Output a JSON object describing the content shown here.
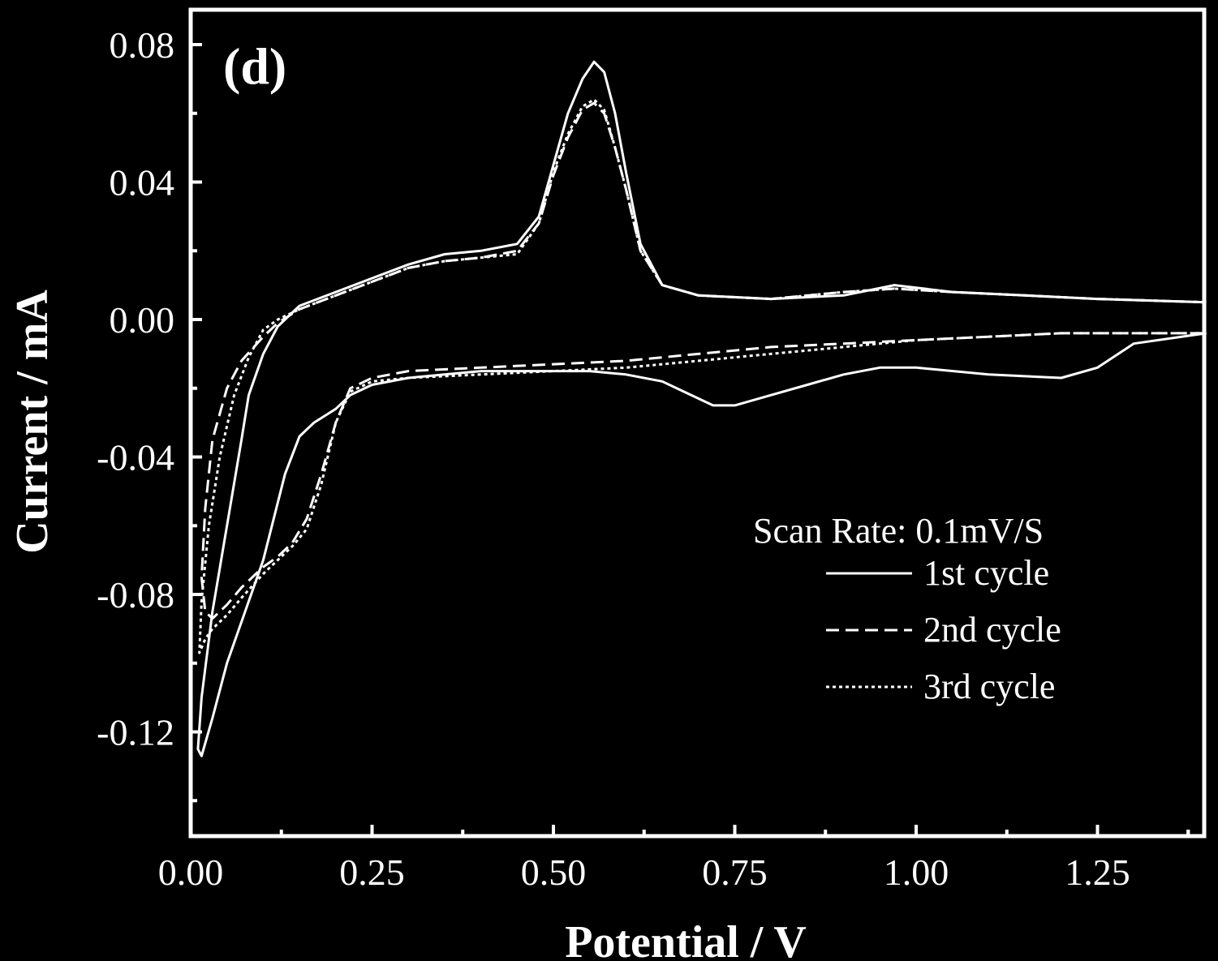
{
  "chart_data": {
    "type": "line",
    "panel_label": "(d)",
    "xlabel": "Potential / V",
    "ylabel": "Current / mA",
    "xlim": [
      0.0,
      1.4
    ],
    "ylim": [
      -0.15,
      0.09
    ],
    "x_ticks": [
      0.0,
      0.25,
      0.5,
      0.75,
      1.0,
      1.25
    ],
    "x_tick_labels": [
      "0.00",
      "0.25",
      "0.50",
      "0.75",
      "1.00",
      "1.25"
    ],
    "y_ticks": [
      0.08,
      0.04,
      0.0,
      -0.04,
      -0.08,
      -0.12
    ],
    "y_tick_labels": [
      "0.08",
      "0.04",
      "0.00",
      "-0.04",
      "-0.08",
      "-0.12"
    ],
    "grid": false,
    "legend": {
      "title": "Scan Rate: 0.1mV/S",
      "position": "lower-right"
    },
    "colors": {
      "background": "#000000",
      "foreground": "#ffffff"
    },
    "series": [
      {
        "name": "1st cycle",
        "style": "solid",
        "x": [
          1.4,
          1.3,
          1.25,
          1.2,
          1.1,
          1.0,
          0.95,
          0.9,
          0.85,
          0.8,
          0.75,
          0.72,
          0.68,
          0.65,
          0.6,
          0.55,
          0.5,
          0.45,
          0.4,
          0.35,
          0.3,
          0.25,
          0.22,
          0.2,
          0.17,
          0.15,
          0.13,
          0.1,
          0.08,
          0.05,
          0.03,
          0.015,
          0.01,
          0.015,
          0.03,
          0.05,
          0.07,
          0.08,
          0.1,
          0.12,
          0.15,
          0.2,
          0.25,
          0.3,
          0.35,
          0.4,
          0.45,
          0.48,
          0.5,
          0.52,
          0.54,
          0.556,
          0.57,
          0.585,
          0.6,
          0.62,
          0.65,
          0.7,
          0.8,
          0.9,
          0.97,
          1.05,
          1.15,
          1.25,
          1.4
        ],
        "y": [
          -0.004,
          -0.007,
          -0.014,
          -0.017,
          -0.016,
          -0.014,
          -0.014,
          -0.016,
          -0.019,
          -0.022,
          -0.025,
          -0.025,
          -0.021,
          -0.018,
          -0.016,
          -0.015,
          -0.015,
          -0.015,
          -0.015,
          -0.016,
          -0.017,
          -0.019,
          -0.022,
          -0.026,
          -0.03,
          -0.034,
          -0.045,
          -0.07,
          -0.082,
          -0.1,
          -0.116,
          -0.127,
          -0.125,
          -0.11,
          -0.085,
          -0.06,
          -0.035,
          -0.022,
          -0.01,
          -0.002,
          0.004,
          0.008,
          0.012,
          0.016,
          0.019,
          0.02,
          0.022,
          0.03,
          0.045,
          0.06,
          0.07,
          0.075,
          0.072,
          0.06,
          0.043,
          0.022,
          0.01,
          0.007,
          0.006,
          0.007,
          0.01,
          0.008,
          0.007,
          0.006,
          0.005
        ]
      },
      {
        "name": "2nd cycle",
        "style": "dashed",
        "x": [
          1.4,
          1.3,
          1.2,
          1.1,
          1.0,
          0.9,
          0.8,
          0.7,
          0.6,
          0.5,
          0.4,
          0.3,
          0.25,
          0.22,
          0.2,
          0.18,
          0.16,
          0.14,
          0.12,
          0.1,
          0.07,
          0.05,
          0.03,
          0.02,
          0.015,
          0.02,
          0.03,
          0.05,
          0.07,
          0.1,
          0.12,
          0.15,
          0.2,
          0.25,
          0.3,
          0.35,
          0.4,
          0.45,
          0.48,
          0.5,
          0.52,
          0.54,
          0.556,
          0.57,
          0.585,
          0.6,
          0.62,
          0.65,
          0.7,
          0.8,
          0.9,
          0.97,
          1.05,
          1.15,
          1.25,
          1.4
        ],
        "y": [
          -0.004,
          -0.004,
          -0.004,
          -0.005,
          -0.006,
          -0.007,
          -0.008,
          -0.01,
          -0.012,
          -0.013,
          -0.014,
          -0.015,
          -0.017,
          -0.02,
          -0.03,
          -0.045,
          -0.058,
          -0.065,
          -0.069,
          -0.072,
          -0.078,
          -0.083,
          -0.087,
          -0.085,
          -0.075,
          -0.055,
          -0.035,
          -0.02,
          -0.012,
          -0.005,
          -0.001,
          0.003,
          0.007,
          0.011,
          0.015,
          0.017,
          0.018,
          0.02,
          0.028,
          0.042,
          0.053,
          0.061,
          0.063,
          0.06,
          0.05,
          0.038,
          0.02,
          0.01,
          0.007,
          0.006,
          0.008,
          0.009,
          0.008,
          0.007,
          0.006,
          0.005
        ]
      },
      {
        "name": "3rd cycle",
        "style": "dotted",
        "x": [
          1.4,
          1.3,
          1.2,
          1.1,
          1.0,
          0.9,
          0.8,
          0.7,
          0.6,
          0.5,
          0.4,
          0.3,
          0.25,
          0.22,
          0.2,
          0.18,
          0.16,
          0.14,
          0.12,
          0.1,
          0.07,
          0.05,
          0.03,
          0.02,
          0.012,
          0.015,
          0.025,
          0.04,
          0.06,
          0.08,
          0.1,
          0.12,
          0.15,
          0.2,
          0.25,
          0.3,
          0.35,
          0.4,
          0.45,
          0.48,
          0.5,
          0.52,
          0.54,
          0.556,
          0.57,
          0.585,
          0.6,
          0.62,
          0.65,
          0.7,
          0.8,
          0.9,
          0.97,
          1.05,
          1.15,
          1.25,
          1.4
        ],
        "y": [
          -0.004,
          -0.004,
          -0.004,
          -0.005,
          -0.006,
          -0.008,
          -0.01,
          -0.012,
          -0.014,
          -0.015,
          -0.016,
          -0.017,
          -0.018,
          -0.021,
          -0.03,
          -0.048,
          -0.061,
          -0.066,
          -0.07,
          -0.074,
          -0.081,
          -0.086,
          -0.09,
          -0.093,
          -0.097,
          -0.082,
          -0.06,
          -0.04,
          -0.022,
          -0.011,
          -0.003,
          0.0,
          0.003,
          0.007,
          0.011,
          0.015,
          0.017,
          0.018,
          0.019,
          0.028,
          0.043,
          0.054,
          0.062,
          0.064,
          0.061,
          0.05,
          0.038,
          0.02,
          0.01,
          0.007,
          0.006,
          0.008,
          0.009,
          0.008,
          0.007,
          0.006,
          0.005
        ]
      }
    ]
  }
}
